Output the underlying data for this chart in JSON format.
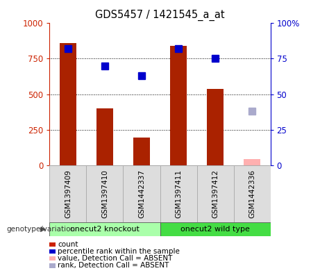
{
  "title": "GDS5457 / 1421545_a_at",
  "samples": [
    "GSM1397409",
    "GSM1397410",
    "GSM1442337",
    "GSM1397411",
    "GSM1397412",
    "GSM1442336"
  ],
  "bar_values": [
    860,
    400,
    195,
    840,
    535,
    null
  ],
  "bar_absent_values": [
    null,
    null,
    null,
    null,
    null,
    45
  ],
  "rank_values": [
    82,
    70,
    63,
    82,
    75,
    null
  ],
  "rank_absent_values": [
    null,
    null,
    null,
    null,
    null,
    38
  ],
  "bar_color": "#aa2200",
  "bar_absent_color": "#ffb0b0",
  "rank_color": "#0000cc",
  "rank_absent_color": "#aaaacc",
  "ylim_left": [
    0,
    1000
  ],
  "ylim_right": [
    0,
    100
  ],
  "yticks_left": [
    0,
    250,
    500,
    750,
    1000
  ],
  "yticks_right": [
    0,
    25,
    50,
    75,
    100
  ],
  "group1_label": "onecut2 knockout",
  "group2_label": "onecut2 wild type",
  "group1_color": "#aaffaa",
  "group2_color": "#44dd44",
  "group_label_left": "genotype/variation",
  "legend_items": [
    {
      "label": "count",
      "color": "#cc2200"
    },
    {
      "label": "percentile rank within the sample",
      "color": "#0000cc"
    },
    {
      "label": "value, Detection Call = ABSENT",
      "color": "#ffb0b0"
    },
    {
      "label": "rank, Detection Call = ABSENT",
      "color": "#aaaacc"
    }
  ],
  "bar_width": 0.45,
  "rank_marker_size": 7,
  "background_color": "#ffffff",
  "left_tick_color": "#cc2200",
  "right_tick_color": "#0000cc"
}
